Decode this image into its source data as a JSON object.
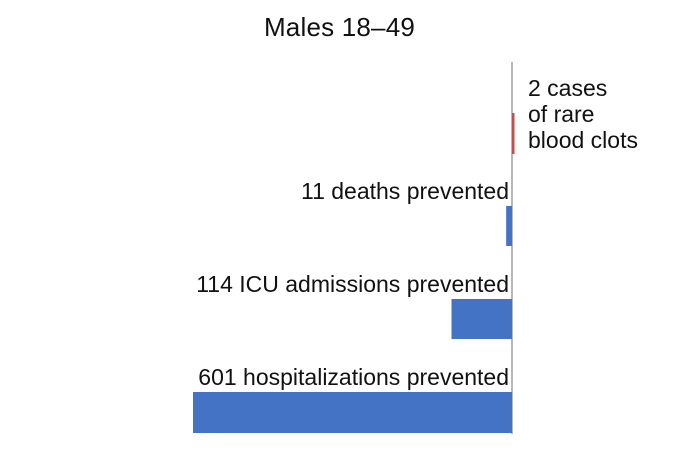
{
  "chart_data": {
    "type": "bar",
    "orientation": "horizontal",
    "title": "Males 18–49",
    "colors": {
      "prevented": "#4472c4",
      "harm": "#c0504d",
      "axis": "#888888"
    },
    "bars": [
      {
        "label_lines": [
          "2 cases",
          "of rare",
          "blood clots"
        ],
        "value": 2,
        "direction": "right",
        "color_key": "harm"
      },
      {
        "label_lines": [
          "11 deaths prevented"
        ],
        "value": 11,
        "direction": "left",
        "color_key": "prevented"
      },
      {
        "label_lines": [
          "114 ICU admissions prevented"
        ],
        "value": 114,
        "direction": "left",
        "color_key": "prevented"
      },
      {
        "label_lines": [
          "601 hospitalizations prevented"
        ],
        "value": 601,
        "direction": "left",
        "color_key": "prevented"
      }
    ]
  }
}
